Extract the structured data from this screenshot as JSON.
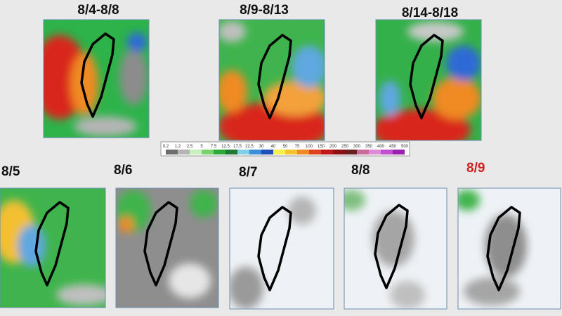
{
  "top_panels": [
    {
      "label": "8/4-8/8"
    },
    {
      "label": "8/9-8/13"
    },
    {
      "label": "8/14-8/18"
    }
  ],
  "colorbar": {
    "labels": [
      "0.2",
      "1.2",
      "2.5",
      "5",
      "7.5",
      "12.5",
      "17.5",
      "22.5",
      "30",
      "40",
      "50",
      "75",
      "100",
      "150",
      "200",
      "250",
      "300",
      "350",
      "400",
      "450",
      "500"
    ]
  },
  "bottom_panels": [
    {
      "label": "8/5"
    },
    {
      "label": "8/6"
    },
    {
      "label": "8/7"
    },
    {
      "label": "8/8"
    },
    {
      "label": "8/9"
    }
  ]
}
